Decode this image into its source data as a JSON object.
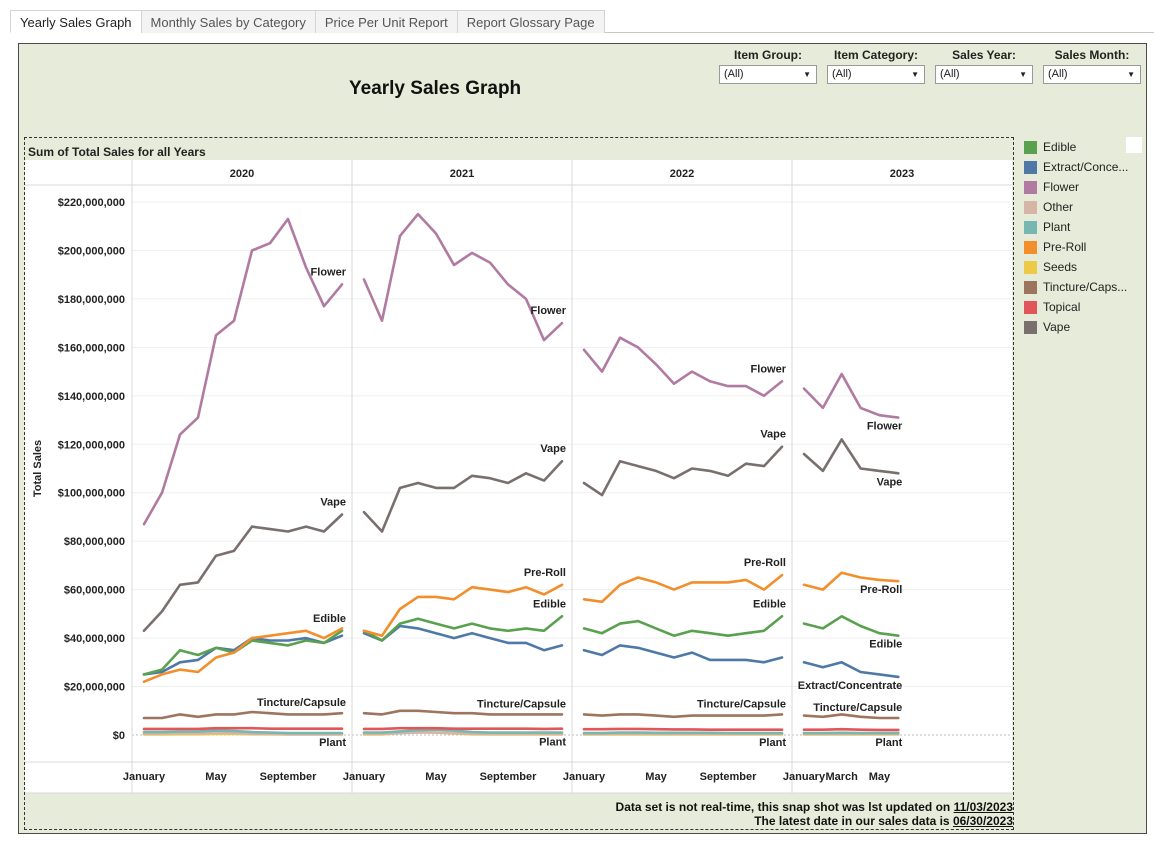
{
  "tabs": [
    {
      "label": "Yearly Sales Graph",
      "active": true
    },
    {
      "label": "Monthly Sales by Category",
      "active": false
    },
    {
      "label": "Price Per Unit Report",
      "active": false
    },
    {
      "label": "Report Glossary Page",
      "active": false
    }
  ],
  "dashboard": {
    "title": "Yearly Sales Graph",
    "filters": [
      {
        "label": "Item Group:",
        "value": "(All)"
      },
      {
        "label": "Item Category:",
        "value": "(All)"
      },
      {
        "label": "Sales Year:",
        "value": "(All)"
      },
      {
        "label": "Sales Month:",
        "value": "(All)"
      }
    ],
    "footer": {
      "line1_prefix": "Data set is not real-time, this snap shot was lst updated on ",
      "line1_date": "11/03/2023",
      "line2_prefix": "The latest date in our sales data is ",
      "line2_date": "06/30/2023"
    }
  },
  "legend": [
    {
      "label": "Edible",
      "color": "#59a14f"
    },
    {
      "label": "Extract/Conce...",
      "color": "#4e79a7"
    },
    {
      "label": "Flower",
      "color": "#b07aa1"
    },
    {
      "label": "Other",
      "color": "#d7b5a6"
    },
    {
      "label": "Plant",
      "color": "#76b7b2"
    },
    {
      "label": "Pre-Roll",
      "color": "#f28e2b"
    },
    {
      "label": "Seeds",
      "color": "#edc948"
    },
    {
      "label": "Tincture/Caps...",
      "color": "#9c755f"
    },
    {
      "label": "Topical",
      "color": "#e15759"
    },
    {
      "label": "Vape",
      "color": "#79706e"
    }
  ],
  "chart_data": {
    "type": "line",
    "title": "Sum of Total Sales for all Years",
    "ylabel": "Total Sales",
    "ylim": [
      0,
      220000000
    ],
    "yticks": [
      "$0",
      "$20,000,000",
      "$40,000,000",
      "$60,000,000",
      "$80,000,000",
      "$100,000,000",
      "$120,000,000",
      "$140,000,000",
      "$160,000,000",
      "$180,000,000",
      "$200,000,000",
      "$220,000,000"
    ],
    "grid": true,
    "legend_position": "right",
    "panels": [
      {
        "year": "2020",
        "months": 12,
        "xticks": [
          {
            "label": "January",
            "month": 1
          },
          {
            "label": "May",
            "month": 5
          },
          {
            "label": "September",
            "month": 9
          }
        ],
        "series": {
          "Flower": [
            87,
            100,
            124,
            131,
            165,
            171,
            200,
            203,
            213,
            193,
            177,
            186
          ],
          "Vape": [
            43,
            51,
            62,
            63,
            74,
            76,
            86,
            85,
            84,
            86,
            84,
            91
          ],
          "Pre-Roll": [
            22,
            25,
            27,
            26,
            32,
            34,
            40,
            41,
            42,
            43,
            40,
            44
          ],
          "Edible": [
            25,
            27,
            35,
            33,
            36,
            34,
            39,
            38,
            37,
            39,
            38,
            43
          ],
          "Extract/Concentrate": [
            25,
            26,
            30,
            31,
            36,
            35,
            40,
            39,
            39,
            40,
            38,
            41
          ],
          "Tincture/Capsule": [
            7,
            7,
            8.5,
            7.5,
            8.5,
            8.5,
            9.5,
            9,
            8.5,
            8.5,
            8.5,
            9
          ],
          "Topical": [
            2.5,
            2.5,
            2.5,
            2.5,
            2.8,
            2.8,
            2.8,
            2.6,
            2.6,
            2.6,
            2.6,
            2.6
          ],
          "Plant": [
            1.2,
            1.2,
            1.4,
            1.4,
            1.8,
            1.6,
            1.2,
            1.0,
            0.8,
            0.8,
            0.8,
            0.8
          ],
          "Other": [
            0.5,
            0.6,
            0.7,
            0.7,
            0.9,
            0.8,
            0.5,
            0.4,
            0.3,
            0.3,
            0.3,
            0.3
          ],
          "Seeds": [
            0.2,
            0.2,
            0.3,
            0.3,
            0.4,
            0.4,
            0.3,
            0.3,
            0.2,
            0.2,
            0.2,
            0.2
          ]
        },
        "labels": {
          "Flower": "Flower",
          "Vape": "Vape",
          "Edible": "Edible",
          "Tincture/Capsule": "Tincture/Capsule",
          "Plant": "Plant"
        }
      },
      {
        "year": "2021",
        "months": 12,
        "xticks": [
          {
            "label": "January",
            "month": 1
          },
          {
            "label": "May",
            "month": 5
          },
          {
            "label": "September",
            "month": 9
          }
        ],
        "series": {
          "Flower": [
            188,
            171,
            206,
            215,
            207,
            194,
            199,
            195,
            186,
            180,
            163,
            170
          ],
          "Vape": [
            92,
            84,
            102,
            104,
            102,
            102,
            107,
            106,
            104,
            108,
            105,
            113
          ],
          "Pre-Roll": [
            43,
            41,
            52,
            57,
            57,
            56,
            61,
            60,
            59,
            61,
            58,
            62
          ],
          "Edible": [
            43,
            39,
            46,
            48,
            46,
            44,
            46,
            44,
            43,
            44,
            43,
            49
          ],
          "Extract/Concentrate": [
            42,
            39,
            45,
            44,
            42,
            40,
            42,
            40,
            38,
            38,
            35,
            37
          ],
          "Tincture/Capsule": [
            9,
            8.5,
            10,
            10,
            9.5,
            9,
            9,
            8.5,
            8.5,
            8.5,
            8.5,
            8.5
          ],
          "Topical": [
            2.5,
            2.5,
            2.8,
            2.8,
            2.8,
            2.6,
            2.6,
            2.6,
            2.6,
            2.6,
            2.5,
            2.6
          ],
          "Plant": [
            1.0,
            1.0,
            1.5,
            2.0,
            2.2,
            1.8,
            1.2,
            1.0,
            1.0,
            1.0,
            1.0,
            1.0
          ],
          "Other": [
            0.5,
            0.5,
            0.8,
            1.0,
            1.0,
            0.8,
            0.5,
            0.4,
            0.4,
            0.4,
            0.4,
            0.4
          ],
          "Seeds": [
            0.2,
            0.2,
            0.8,
            1.2,
            1.0,
            0.6,
            0.3,
            0.2,
            0.2,
            0.2,
            0.2,
            0.2
          ]
        },
        "labels": {
          "Flower": "Flower",
          "Vape": "Vape",
          "Pre-Roll": "Pre-Roll",
          "Edible": "Edible",
          "Tincture/Capsule": "Tincture/Capsule",
          "Plant": "Plant"
        }
      },
      {
        "year": "2022",
        "months": 12,
        "xticks": [
          {
            "label": "January",
            "month": 1
          },
          {
            "label": "May",
            "month": 5
          },
          {
            "label": "September",
            "month": 9
          }
        ],
        "series": {
          "Flower": [
            159,
            150,
            164,
            160,
            153,
            145,
            150,
            146,
            144,
            144,
            140,
            146
          ],
          "Vape": [
            104,
            99,
            113,
            111,
            109,
            106,
            110,
            109,
            107,
            112,
            111,
            119
          ],
          "Pre-Roll": [
            56,
            55,
            62,
            65,
            63,
            60,
            63,
            63,
            63,
            64,
            60,
            66
          ],
          "Edible": [
            44,
            42,
            46,
            47,
            44,
            41,
            43,
            42,
            41,
            42,
            43,
            49
          ],
          "Extract/Concentrate": [
            35,
            33,
            37,
            36,
            34,
            32,
            34,
            31,
            31,
            31,
            30,
            32
          ],
          "Tincture/Capsule": [
            8.5,
            8,
            8.5,
            8.5,
            8,
            7.5,
            8,
            8,
            8,
            8,
            8,
            8.5
          ],
          "Topical": [
            2.4,
            2.4,
            2.5,
            2.5,
            2.4,
            2.3,
            2.3,
            2.2,
            2.2,
            2.2,
            2.2,
            2.2
          ],
          "Plant": [
            0.8,
            0.8,
            1.0,
            1.0,
            0.9,
            0.9,
            0.9,
            0.9,
            0.8,
            0.8,
            0.8,
            0.8
          ],
          "Other": [
            0.4,
            0.4,
            0.5,
            0.5,
            0.4,
            0.4,
            0.4,
            0.4,
            0.4,
            0.4,
            0.4,
            0.4
          ],
          "Seeds": [
            0.2,
            0.2,
            0.2,
            0.2,
            0.2,
            0.2,
            0.2,
            0.2,
            0.2,
            0.2,
            0.2,
            0.2
          ]
        },
        "labels": {
          "Flower": "Flower",
          "Vape": "Vape",
          "Pre-Roll": "Pre-Roll",
          "Edible": "Edible",
          "Tincture/Capsule": "Tincture/Capsule",
          "Plant": "Plant"
        }
      },
      {
        "year": "2023",
        "months": 6,
        "xticks": [
          {
            "label": "January",
            "month": 1
          },
          {
            "label": "March",
            "month": 3
          },
          {
            "label": "May",
            "month": 5
          }
        ],
        "series": {
          "Flower": [
            143,
            135,
            149,
            135,
            132,
            131
          ],
          "Vape": [
            116,
            109,
            122,
            110,
            109,
            108
          ],
          "Pre-Roll": [
            62,
            60,
            67,
            65,
            64,
            63.5
          ],
          "Edible": [
            46,
            44,
            49,
            45,
            42,
            41
          ],
          "Extract/Concentrate": [
            30,
            28,
            30,
            26,
            25,
            24
          ],
          "Tincture/Capsule": [
            8,
            7.5,
            8.5,
            7.5,
            7,
            7
          ],
          "Topical": [
            2.2,
            2.2,
            2.4,
            2.2,
            2.1,
            2.1
          ],
          "Plant": [
            0.8,
            0.8,
            0.9,
            0.8,
            0.8,
            0.8
          ],
          "Other": [
            0.4,
            0.4,
            0.4,
            0.4,
            0.4,
            0.4
          ],
          "Seeds": [
            0.2,
            0.2,
            0.2,
            0.2,
            0.2,
            0.2
          ]
        },
        "labels": {
          "Flower": "Flower",
          "Vape": "Vape",
          "Pre-Roll": "Pre-Roll",
          "Edible": "Edible",
          "Extract/Concentrate": "Extract/Concentrate",
          "Tincture/Capsule": "Tincture/Capsule",
          "Plant": "Plant"
        }
      }
    ]
  }
}
